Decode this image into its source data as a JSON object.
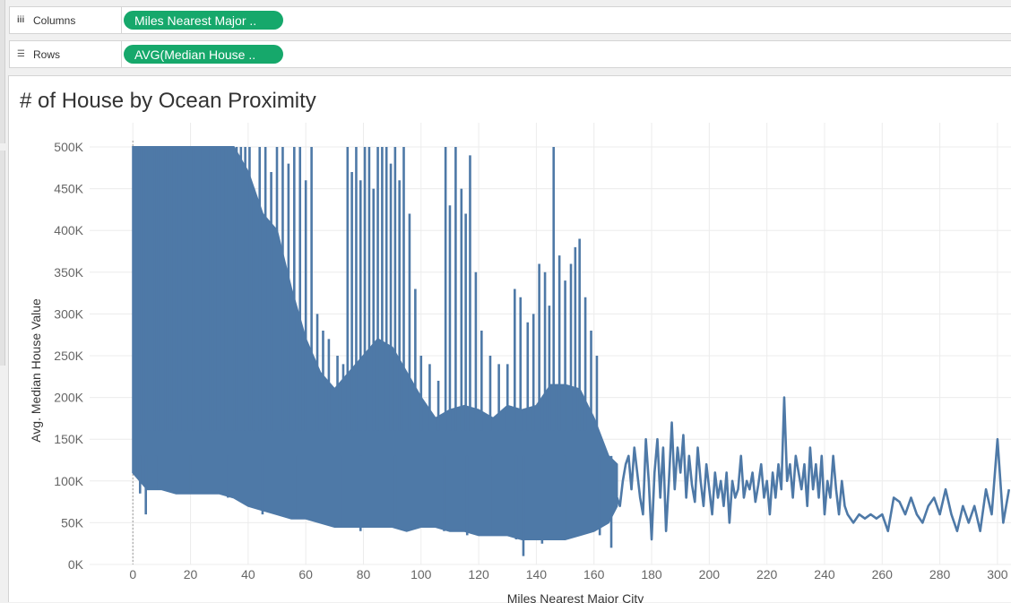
{
  "shelves": {
    "columns": {
      "label": "Columns",
      "icon": "columns-icon",
      "pill": "Miles Nearest Major .."
    },
    "rows": {
      "label": "Rows",
      "icon": "rows-icon",
      "pill": "AVG(Median House .."
    }
  },
  "colors": {
    "series": "#4e79a7",
    "pill": "#16a86b",
    "grid": "#ececec"
  },
  "chart_data": {
    "type": "line",
    "title": "# of House by Ocean Proximity",
    "xlabel": "Miles Nearest Major City",
    "ylabel": "Avg. Median House Value",
    "xlim": [
      -15,
      305
    ],
    "ylim": [
      0,
      500000
    ],
    "x_ticks": [
      "0",
      "20",
      "40",
      "60",
      "80",
      "100",
      "120",
      "140",
      "160",
      "180",
      "200",
      "220",
      "240",
      "260",
      "280",
      "300"
    ],
    "y_ticks": [
      "0K",
      "50K",
      "100K",
      "150K",
      "200K",
      "250K",
      "300K",
      "350K",
      "400K",
      "450K",
      "500K"
    ],
    "grid": true,
    "dense_band": [
      {
        "x": 0,
        "low": 110000,
        "high": 500000
      },
      {
        "x": 5,
        "low": 90000,
        "high": 500000
      },
      {
        "x": 10,
        "low": 90000,
        "high": 500000
      },
      {
        "x": 15,
        "low": 85000,
        "high": 500000
      },
      {
        "x": 20,
        "low": 85000,
        "high": 500000
      },
      {
        "x": 25,
        "low": 85000,
        "high": 500000
      },
      {
        "x": 30,
        "low": 85000,
        "high": 500000
      },
      {
        "x": 35,
        "low": 80000,
        "high": 500000
      },
      {
        "x": 40,
        "low": 70000,
        "high": 470000
      },
      {
        "x": 45,
        "low": 65000,
        "high": 420000
      },
      {
        "x": 50,
        "low": 60000,
        "high": 400000
      },
      {
        "x": 55,
        "low": 55000,
        "high": 330000
      },
      {
        "x": 60,
        "low": 55000,
        "high": 270000
      },
      {
        "x": 65,
        "low": 50000,
        "high": 230000
      },
      {
        "x": 70,
        "low": 45000,
        "high": 210000
      },
      {
        "x": 75,
        "low": 45000,
        "high": 230000
      },
      {
        "x": 80,
        "low": 45000,
        "high": 250000
      },
      {
        "x": 85,
        "low": 45000,
        "high": 270000
      },
      {
        "x": 90,
        "low": 45000,
        "high": 260000
      },
      {
        "x": 95,
        "low": 40000,
        "high": 230000
      },
      {
        "x": 100,
        "low": 45000,
        "high": 200000
      },
      {
        "x": 105,
        "low": 45000,
        "high": 175000
      },
      {
        "x": 110,
        "low": 40000,
        "high": 185000
      },
      {
        "x": 115,
        "low": 40000,
        "high": 190000
      },
      {
        "x": 120,
        "low": 35000,
        "high": 185000
      },
      {
        "x": 125,
        "low": 35000,
        "high": 175000
      },
      {
        "x": 130,
        "low": 35000,
        "high": 190000
      },
      {
        "x": 135,
        "low": 30000,
        "high": 185000
      },
      {
        "x": 140,
        "low": 30000,
        "high": 190000
      },
      {
        "x": 145,
        "low": 30000,
        "high": 215000
      },
      {
        "x": 150,
        "low": 30000,
        "high": 215000
      },
      {
        "x": 155,
        "low": 35000,
        "high": 210000
      },
      {
        "x": 160,
        "low": 40000,
        "high": 175000
      },
      {
        "x": 165,
        "low": 50000,
        "high": 130000
      },
      {
        "x": 168,
        "low": 70000,
        "high": 120000
      }
    ],
    "spikes": [
      {
        "x": 0.6,
        "y": 500000
      },
      {
        "x": 1.5,
        "y": 500000
      },
      {
        "x": 3,
        "y": 500000
      },
      {
        "x": 4.5,
        "y": 500000
      },
      {
        "x": 6,
        "y": 500000
      },
      {
        "x": 7.5,
        "y": 500000
      },
      {
        "x": 9,
        "y": 500000
      },
      {
        "x": 10.5,
        "y": 500000
      },
      {
        "x": 12,
        "y": 500000
      },
      {
        "x": 13.5,
        "y": 500000
      },
      {
        "x": 15,
        "y": 500000
      },
      {
        "x": 16.5,
        "y": 500000
      },
      {
        "x": 18,
        "y": 500000
      },
      {
        "x": 19.5,
        "y": 500000
      },
      {
        "x": 21,
        "y": 500000
      },
      {
        "x": 22.5,
        "y": 500000
      },
      {
        "x": 24,
        "y": 500000
      },
      {
        "x": 25.5,
        "y": 500000
      },
      {
        "x": 27,
        "y": 500000
      },
      {
        "x": 28.5,
        "y": 500000
      },
      {
        "x": 30,
        "y": 500000
      },
      {
        "x": 31.5,
        "y": 500000
      },
      {
        "x": 33,
        "y": 500000
      },
      {
        "x": 34.5,
        "y": 500000
      },
      {
        "x": 36,
        "y": 500000
      },
      {
        "x": 37.5,
        "y": 500000
      },
      {
        "x": 39,
        "y": 500000
      },
      {
        "x": 40.5,
        "y": 500000
      },
      {
        "x": 42,
        "y": 450000
      },
      {
        "x": 44,
        "y": 500000
      },
      {
        "x": 46,
        "y": 500000
      },
      {
        "x": 48,
        "y": 470000
      },
      {
        "x": 50,
        "y": 500000
      },
      {
        "x": 52,
        "y": 500000
      },
      {
        "x": 54,
        "y": 480000
      },
      {
        "x": 56,
        "y": 500000
      },
      {
        "x": 58,
        "y": 500000
      },
      {
        "x": 60,
        "y": 460000
      },
      {
        "x": 62,
        "y": 500000
      },
      {
        "x": 64,
        "y": 300000
      },
      {
        "x": 66,
        "y": 280000
      },
      {
        "x": 68,
        "y": 270000
      },
      {
        "x": 71,
        "y": 250000
      },
      {
        "x": 73,
        "y": 240000
      },
      {
        "x": 74.5,
        "y": 500000
      },
      {
        "x": 76,
        "y": 470000
      },
      {
        "x": 77.5,
        "y": 500000
      },
      {
        "x": 79,
        "y": 460000
      },
      {
        "x": 80.5,
        "y": 500000
      },
      {
        "x": 82,
        "y": 500000
      },
      {
        "x": 83.5,
        "y": 450000
      },
      {
        "x": 85,
        "y": 500000
      },
      {
        "x": 86.5,
        "y": 500000
      },
      {
        "x": 88,
        "y": 500000
      },
      {
        "x": 89.5,
        "y": 480000
      },
      {
        "x": 91,
        "y": 500000
      },
      {
        "x": 92.5,
        "y": 460000
      },
      {
        "x": 94,
        "y": 500000
      },
      {
        "x": 96,
        "y": 420000
      },
      {
        "x": 98,
        "y": 330000
      },
      {
        "x": 100,
        "y": 250000
      },
      {
        "x": 103,
        "y": 240000
      },
      {
        "x": 106,
        "y": 220000
      },
      {
        "x": 108.5,
        "y": 500000
      },
      {
        "x": 110,
        "y": 430000
      },
      {
        "x": 112,
        "y": 500000
      },
      {
        "x": 114,
        "y": 450000
      },
      {
        "x": 115.5,
        "y": 420000
      },
      {
        "x": 117,
        "y": 490000
      },
      {
        "x": 119,
        "y": 350000
      },
      {
        "x": 121,
        "y": 280000
      },
      {
        "x": 124,
        "y": 250000
      },
      {
        "x": 127,
        "y": 240000
      },
      {
        "x": 130,
        "y": 240000
      },
      {
        "x": 132.5,
        "y": 330000
      },
      {
        "x": 134.5,
        "y": 320000
      },
      {
        "x": 137,
        "y": 290000
      },
      {
        "x": 139,
        "y": 300000
      },
      {
        "x": 141,
        "y": 360000
      },
      {
        "x": 143,
        "y": 350000
      },
      {
        "x": 144.5,
        "y": 310000
      },
      {
        "x": 146,
        "y": 500000
      },
      {
        "x": 148,
        "y": 370000
      },
      {
        "x": 150,
        "y": 340000
      },
      {
        "x": 152,
        "y": 360000
      },
      {
        "x": 153.5,
        "y": 380000
      },
      {
        "x": 155,
        "y": 390000
      },
      {
        "x": 157,
        "y": 320000
      },
      {
        "x": 159,
        "y": 280000
      },
      {
        "x": 161,
        "y": 250000
      }
    ],
    "dips": [
      {
        "x": 0.8,
        "y": 110000
      },
      {
        "x": 2.5,
        "y": 85000
      },
      {
        "x": 4.5,
        "y": 60000
      },
      {
        "x": 8,
        "y": 90000
      },
      {
        "x": 20,
        "y": 85000
      },
      {
        "x": 33,
        "y": 80000
      },
      {
        "x": 45,
        "y": 60000
      },
      {
        "x": 57,
        "y": 55000
      },
      {
        "x": 72,
        "y": 45000
      },
      {
        "x": 79,
        "y": 40000
      },
      {
        "x": 91,
        "y": 45000
      },
      {
        "x": 108,
        "y": 40000
      },
      {
        "x": 116,
        "y": 35000
      },
      {
        "x": 124,
        "y": 35000
      },
      {
        "x": 133,
        "y": 30000
      },
      {
        "x": 135.5,
        "y": 10000
      },
      {
        "x": 142,
        "y": 25000
      },
      {
        "x": 150,
        "y": 30000
      },
      {
        "x": 162,
        "y": 35000
      },
      {
        "x": 166,
        "y": 20000
      }
    ],
    "tail": [
      {
        "x": 168,
        "y": 80000
      },
      {
        "x": 169,
        "y": 70000
      },
      {
        "x": 170,
        "y": 100000
      },
      {
        "x": 171,
        "y": 120000
      },
      {
        "x": 172,
        "y": 130000
      },
      {
        "x": 173,
        "y": 90000
      },
      {
        "x": 174,
        "y": 140000
      },
      {
        "x": 175,
        "y": 110000
      },
      {
        "x": 176,
        "y": 80000
      },
      {
        "x": 177,
        "y": 60000
      },
      {
        "x": 178,
        "y": 150000
      },
      {
        "x": 179,
        "y": 100000
      },
      {
        "x": 180,
        "y": 30000
      },
      {
        "x": 181,
        "y": 110000
      },
      {
        "x": 182,
        "y": 150000
      },
      {
        "x": 183,
        "y": 80000
      },
      {
        "x": 184,
        "y": 140000
      },
      {
        "x": 185,
        "y": 40000
      },
      {
        "x": 186,
        "y": 100000
      },
      {
        "x": 187,
        "y": 170000
      },
      {
        "x": 188,
        "y": 90000
      },
      {
        "x": 189,
        "y": 140000
      },
      {
        "x": 190,
        "y": 110000
      },
      {
        "x": 191,
        "y": 155000
      },
      {
        "x": 192,
        "y": 80000
      },
      {
        "x": 193,
        "y": 130000
      },
      {
        "x": 194,
        "y": 95000
      },
      {
        "x": 195,
        "y": 75000
      },
      {
        "x": 196,
        "y": 140000
      },
      {
        "x": 197,
        "y": 100000
      },
      {
        "x": 198,
        "y": 70000
      },
      {
        "x": 199,
        "y": 120000
      },
      {
        "x": 200,
        "y": 90000
      },
      {
        "x": 201,
        "y": 60000
      },
      {
        "x": 202,
        "y": 110000
      },
      {
        "x": 203,
        "y": 80000
      },
      {
        "x": 204,
        "y": 100000
      },
      {
        "x": 205,
        "y": 70000
      },
      {
        "x": 206,
        "y": 110000
      },
      {
        "x": 207,
        "y": 50000
      },
      {
        "x": 208,
        "y": 100000
      },
      {
        "x": 209,
        "y": 80000
      },
      {
        "x": 210,
        "y": 90000
      },
      {
        "x": 211,
        "y": 130000
      },
      {
        "x": 212,
        "y": 80000
      },
      {
        "x": 213,
        "y": 100000
      },
      {
        "x": 214,
        "y": 90000
      },
      {
        "x": 215,
        "y": 110000
      },
      {
        "x": 216,
        "y": 75000
      },
      {
        "x": 217,
        "y": 95000
      },
      {
        "x": 218,
        "y": 120000
      },
      {
        "x": 219,
        "y": 80000
      },
      {
        "x": 220,
        "y": 100000
      },
      {
        "x": 221,
        "y": 60000
      },
      {
        "x": 222,
        "y": 110000
      },
      {
        "x": 223,
        "y": 80000
      },
      {
        "x": 224,
        "y": 120000
      },
      {
        "x": 225,
        "y": 90000
      },
      {
        "x": 226,
        "y": 200000
      },
      {
        "x": 227,
        "y": 100000
      },
      {
        "x": 228,
        "y": 120000
      },
      {
        "x": 229,
        "y": 80000
      },
      {
        "x": 230,
        "y": 130000
      },
      {
        "x": 231,
        "y": 110000
      },
      {
        "x": 232,
        "y": 90000
      },
      {
        "x": 233,
        "y": 120000
      },
      {
        "x": 234,
        "y": 70000
      },
      {
        "x": 235,
        "y": 140000
      },
      {
        "x": 236,
        "y": 90000
      },
      {
        "x": 237,
        "y": 120000
      },
      {
        "x": 238,
        "y": 80000
      },
      {
        "x": 239,
        "y": 130000
      },
      {
        "x": 240,
        "y": 60000
      },
      {
        "x": 241,
        "y": 100000
      },
      {
        "x": 242,
        "y": 80000
      },
      {
        "x": 243,
        "y": 130000
      },
      {
        "x": 244,
        "y": 90000
      },
      {
        "x": 245,
        "y": 60000
      },
      {
        "x": 246,
        "y": 100000
      },
      {
        "x": 247,
        "y": 70000
      },
      {
        "x": 248,
        "y": 60000
      },
      {
        "x": 250,
        "y": 50000
      },
      {
        "x": 252,
        "y": 60000
      },
      {
        "x": 254,
        "y": 55000
      },
      {
        "x": 256,
        "y": 60000
      },
      {
        "x": 258,
        "y": 55000
      },
      {
        "x": 260,
        "y": 60000
      },
      {
        "x": 262,
        "y": 40000
      },
      {
        "x": 264,
        "y": 80000
      },
      {
        "x": 266,
        "y": 75000
      },
      {
        "x": 268,
        "y": 60000
      },
      {
        "x": 270,
        "y": 80000
      },
      {
        "x": 272,
        "y": 60000
      },
      {
        "x": 274,
        "y": 50000
      },
      {
        "x": 276,
        "y": 70000
      },
      {
        "x": 278,
        "y": 80000
      },
      {
        "x": 280,
        "y": 60000
      },
      {
        "x": 282,
        "y": 90000
      },
      {
        "x": 284,
        "y": 60000
      },
      {
        "x": 286,
        "y": 40000
      },
      {
        "x": 288,
        "y": 70000
      },
      {
        "x": 290,
        "y": 50000
      },
      {
        "x": 292,
        "y": 70000
      },
      {
        "x": 294,
        "y": 40000
      },
      {
        "x": 296,
        "y": 90000
      },
      {
        "x": 298,
        "y": 60000
      },
      {
        "x": 300,
        "y": 150000
      },
      {
        "x": 302,
        "y": 50000
      },
      {
        "x": 304,
        "y": 90000
      }
    ]
  }
}
